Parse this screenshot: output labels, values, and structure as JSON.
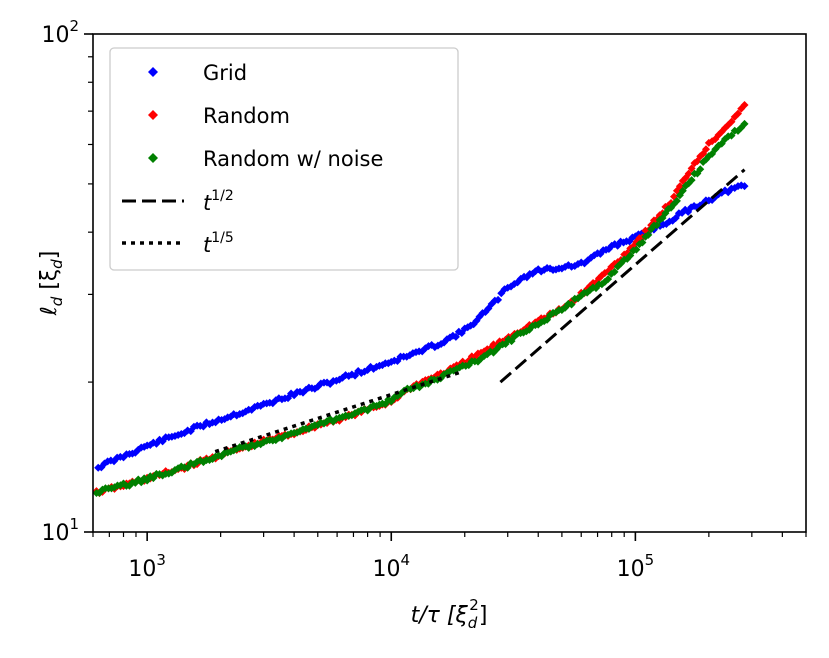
{
  "chart_data": {
    "type": "scatter",
    "xscale": "log",
    "yscale": "log",
    "xlim": [
      600,
      500000
    ],
    "ylim": [
      10,
      100
    ],
    "xlabel": {
      "pre": "t/τ [ξ",
      "sub": "d",
      "sup": "2",
      "post": "]"
    },
    "ylabel": {
      "pre": "ℓ",
      "sub": "d",
      "mid": " [ξ",
      "sub2": "d",
      "post": "]"
    },
    "xticks": [
      {
        "value": 1000,
        "base": "10",
        "exp": "3"
      },
      {
        "value": 10000,
        "base": "10",
        "exp": "4"
      },
      {
        "value": 100000,
        "base": "10",
        "exp": "5"
      }
    ],
    "yticks": [
      {
        "value": 10,
        "base": "10",
        "exp": "1"
      },
      {
        "value": 100,
        "base": "10",
        "exp": "2"
      }
    ],
    "series": [
      {
        "name": "Grid",
        "color": "#0000ff",
        "marker": "diamond",
        "points": [
          [
            630,
            13.5
          ],
          [
            800,
            14.2
          ],
          [
            1000,
            14.9
          ],
          [
            1300,
            15.6
          ],
          [
            1700,
            16.4
          ],
          [
            2200,
            17.1
          ],
          [
            3000,
            18.0
          ],
          [
            4000,
            18.9
          ],
          [
            5000,
            19.6
          ],
          [
            6500,
            20.5
          ],
          [
            8000,
            21.2
          ],
          [
            10000,
            22.0
          ],
          [
            13000,
            23.0
          ],
          [
            16000,
            24.0
          ],
          [
            20000,
            25.4
          ],
          [
            25000,
            28.0
          ],
          [
            30000,
            31.0
          ],
          [
            35000,
            32.5
          ],
          [
            40000,
            33.5
          ],
          [
            50000,
            34.0
          ],
          [
            60000,
            34.5
          ],
          [
            70000,
            36.0
          ],
          [
            80000,
            37.5
          ],
          [
            100000,
            39.0
          ],
          [
            130000,
            41.5
          ],
          [
            160000,
            44.0
          ],
          [
            200000,
            46.5
          ],
          [
            240000,
            48.5
          ],
          [
            280000,
            49.5
          ]
        ]
      },
      {
        "name": "Random",
        "color": "#ff0000",
        "marker": "diamond",
        "points": [
          [
            620,
            12.0
          ],
          [
            800,
            12.4
          ],
          [
            1000,
            12.8
          ],
          [
            1300,
            13.3
          ],
          [
            1700,
            13.9
          ],
          [
            2200,
            14.5
          ],
          [
            3000,
            15.2
          ],
          [
            4000,
            15.8
          ],
          [
            5000,
            16.4
          ],
          [
            6500,
            17.0
          ],
          [
            8000,
            17.6
          ],
          [
            10000,
            18.3
          ],
          [
            12000,
            19.5
          ],
          [
            15000,
            20.5
          ],
          [
            18000,
            21.3
          ],
          [
            22000,
            22.5
          ],
          [
            27000,
            23.8
          ],
          [
            32000,
            25.0
          ],
          [
            40000,
            26.5
          ],
          [
            50000,
            28.0
          ],
          [
            60000,
            30.0
          ],
          [
            75000,
            33.0
          ],
          [
            90000,
            36.0
          ],
          [
            110000,
            40.0
          ],
          [
            140000,
            46.0
          ],
          [
            170000,
            54.0
          ],
          [
            200000,
            60.0
          ],
          [
            240000,
            66.0
          ],
          [
            280000,
            72.0
          ]
        ]
      },
      {
        "name": "Random w/ noise",
        "color": "#008000",
        "marker": "diamond",
        "points": [
          [
            620,
            12.0
          ],
          [
            800,
            12.4
          ],
          [
            1000,
            12.8
          ],
          [
            1300,
            13.3
          ],
          [
            1700,
            13.9
          ],
          [
            2200,
            14.5
          ],
          [
            3000,
            15.2
          ],
          [
            4000,
            15.8
          ],
          [
            5000,
            16.4
          ],
          [
            6500,
            17.1
          ],
          [
            8000,
            17.7
          ],
          [
            10000,
            18.4
          ],
          [
            12000,
            19.4
          ],
          [
            15000,
            20.2
          ],
          [
            18000,
            21.0
          ],
          [
            22000,
            22.0
          ],
          [
            27000,
            23.3
          ],
          [
            32000,
            24.6
          ],
          [
            40000,
            26.3
          ],
          [
            50000,
            28.0
          ],
          [
            60000,
            29.8
          ],
          [
            75000,
            32.0
          ],
          [
            90000,
            35.0
          ],
          [
            110000,
            39.0
          ],
          [
            140000,
            45.0
          ],
          [
            170000,
            51.0
          ],
          [
            200000,
            57.0
          ],
          [
            240000,
            62.0
          ],
          [
            280000,
            66.0
          ]
        ]
      }
    ],
    "reference_lines": [
      {
        "name": "t^{1/2}",
        "base": "t",
        "exp": "1/2",
        "style": "dashed",
        "from": [
          28000,
          20.0
        ],
        "to": [
          280000,
          53.4
        ]
      },
      {
        "name": "t^{1/5}",
        "base": "t",
        "exp": "1/5",
        "style": "dotted",
        "from": [
          1900,
          14.5
        ],
        "to": [
          19000,
          20.9
        ]
      }
    ],
    "legend": {
      "position": "top-left"
    }
  }
}
